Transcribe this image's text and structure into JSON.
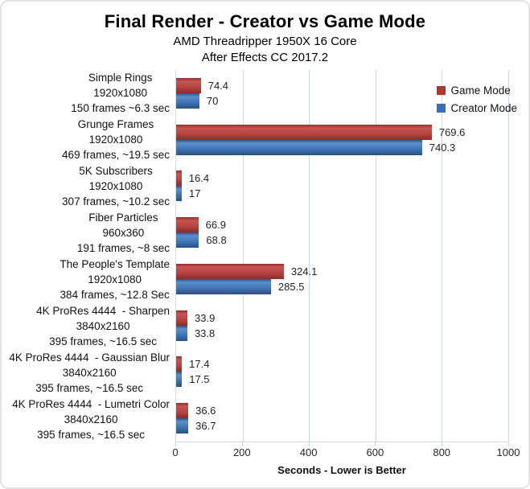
{
  "title": "Final Render - Creator vs Game Mode",
  "subtitle1": "AMD Threadripper 1950X 16 Core",
  "subtitle2": "After Effects CC 2017.2",
  "legend": {
    "items": [
      {
        "label": "Game Mode",
        "color": "#b0342f"
      },
      {
        "label": "Creator Mode",
        "color": "#3b6eb5"
      }
    ],
    "position": "top-right"
  },
  "chart_data": {
    "type": "bar",
    "orientation": "horizontal",
    "title": "Final Render - Creator vs Game Mode",
    "subtitles": [
      "AMD Threadripper 1950X 16 Core",
      "After Effects CC 2017.2"
    ],
    "categories": [
      [
        "Simple Rings",
        "1920x1080",
        "150 frames ~6.3 sec"
      ],
      [
        "Grunge Frames",
        "1920x1080",
        "469 frames, ~19.5 sec"
      ],
      [
        "5K Subscribers",
        "1920x1080",
        "307 frames, ~10.2 sec"
      ],
      [
        "Fiber Particles",
        "960x360",
        "191 frames, ~8 sec"
      ],
      [
        "The People's Template",
        "1920x1080",
        "384 frames, ~12.8 Sec"
      ],
      [
        "4K ProRes 4444  - Sharpen",
        "3840x2160",
        "395 frames, ~16.5 sec"
      ],
      [
        "4K ProRes 4444  - Gaussian Blur",
        "3840x2160",
        "395 frames, ~16.5 sec"
      ],
      [
        "4K ProRes 4444  - Lumetri Color",
        "3840x2160",
        "395 frames, ~16.5 sec"
      ]
    ],
    "series": [
      {
        "name": "Game Mode",
        "color": "#b0342f",
        "css_class": "game",
        "values": [
          74.4,
          769.6,
          16.4,
          66.9,
          324.1,
          33.9,
          17.4,
          36.6
        ],
        "labels": [
          "74.4",
          "769.6",
          "16.4",
          "66.9",
          "324.1",
          "33.9",
          "17.4",
          "36.6"
        ]
      },
      {
        "name": "Creator Mode",
        "color": "#3b6eb5",
        "css_class": "creator",
        "values": [
          70,
          740.3,
          17,
          68.8,
          285.5,
          33.8,
          17.5,
          36.7
        ],
        "labels": [
          "70",
          "740.3",
          "17",
          "68.8",
          "285.5",
          "33.8",
          "17.5",
          "36.7"
        ]
      }
    ],
    "xlabel": "Seconds - Lower is Better",
    "xlim": [
      0,
      1000
    ],
    "xticks": [
      0,
      200,
      400,
      600,
      800,
      1000
    ],
    "grid": true,
    "gridline_color": "#c9d6e8",
    "legend_position": "top-right"
  }
}
